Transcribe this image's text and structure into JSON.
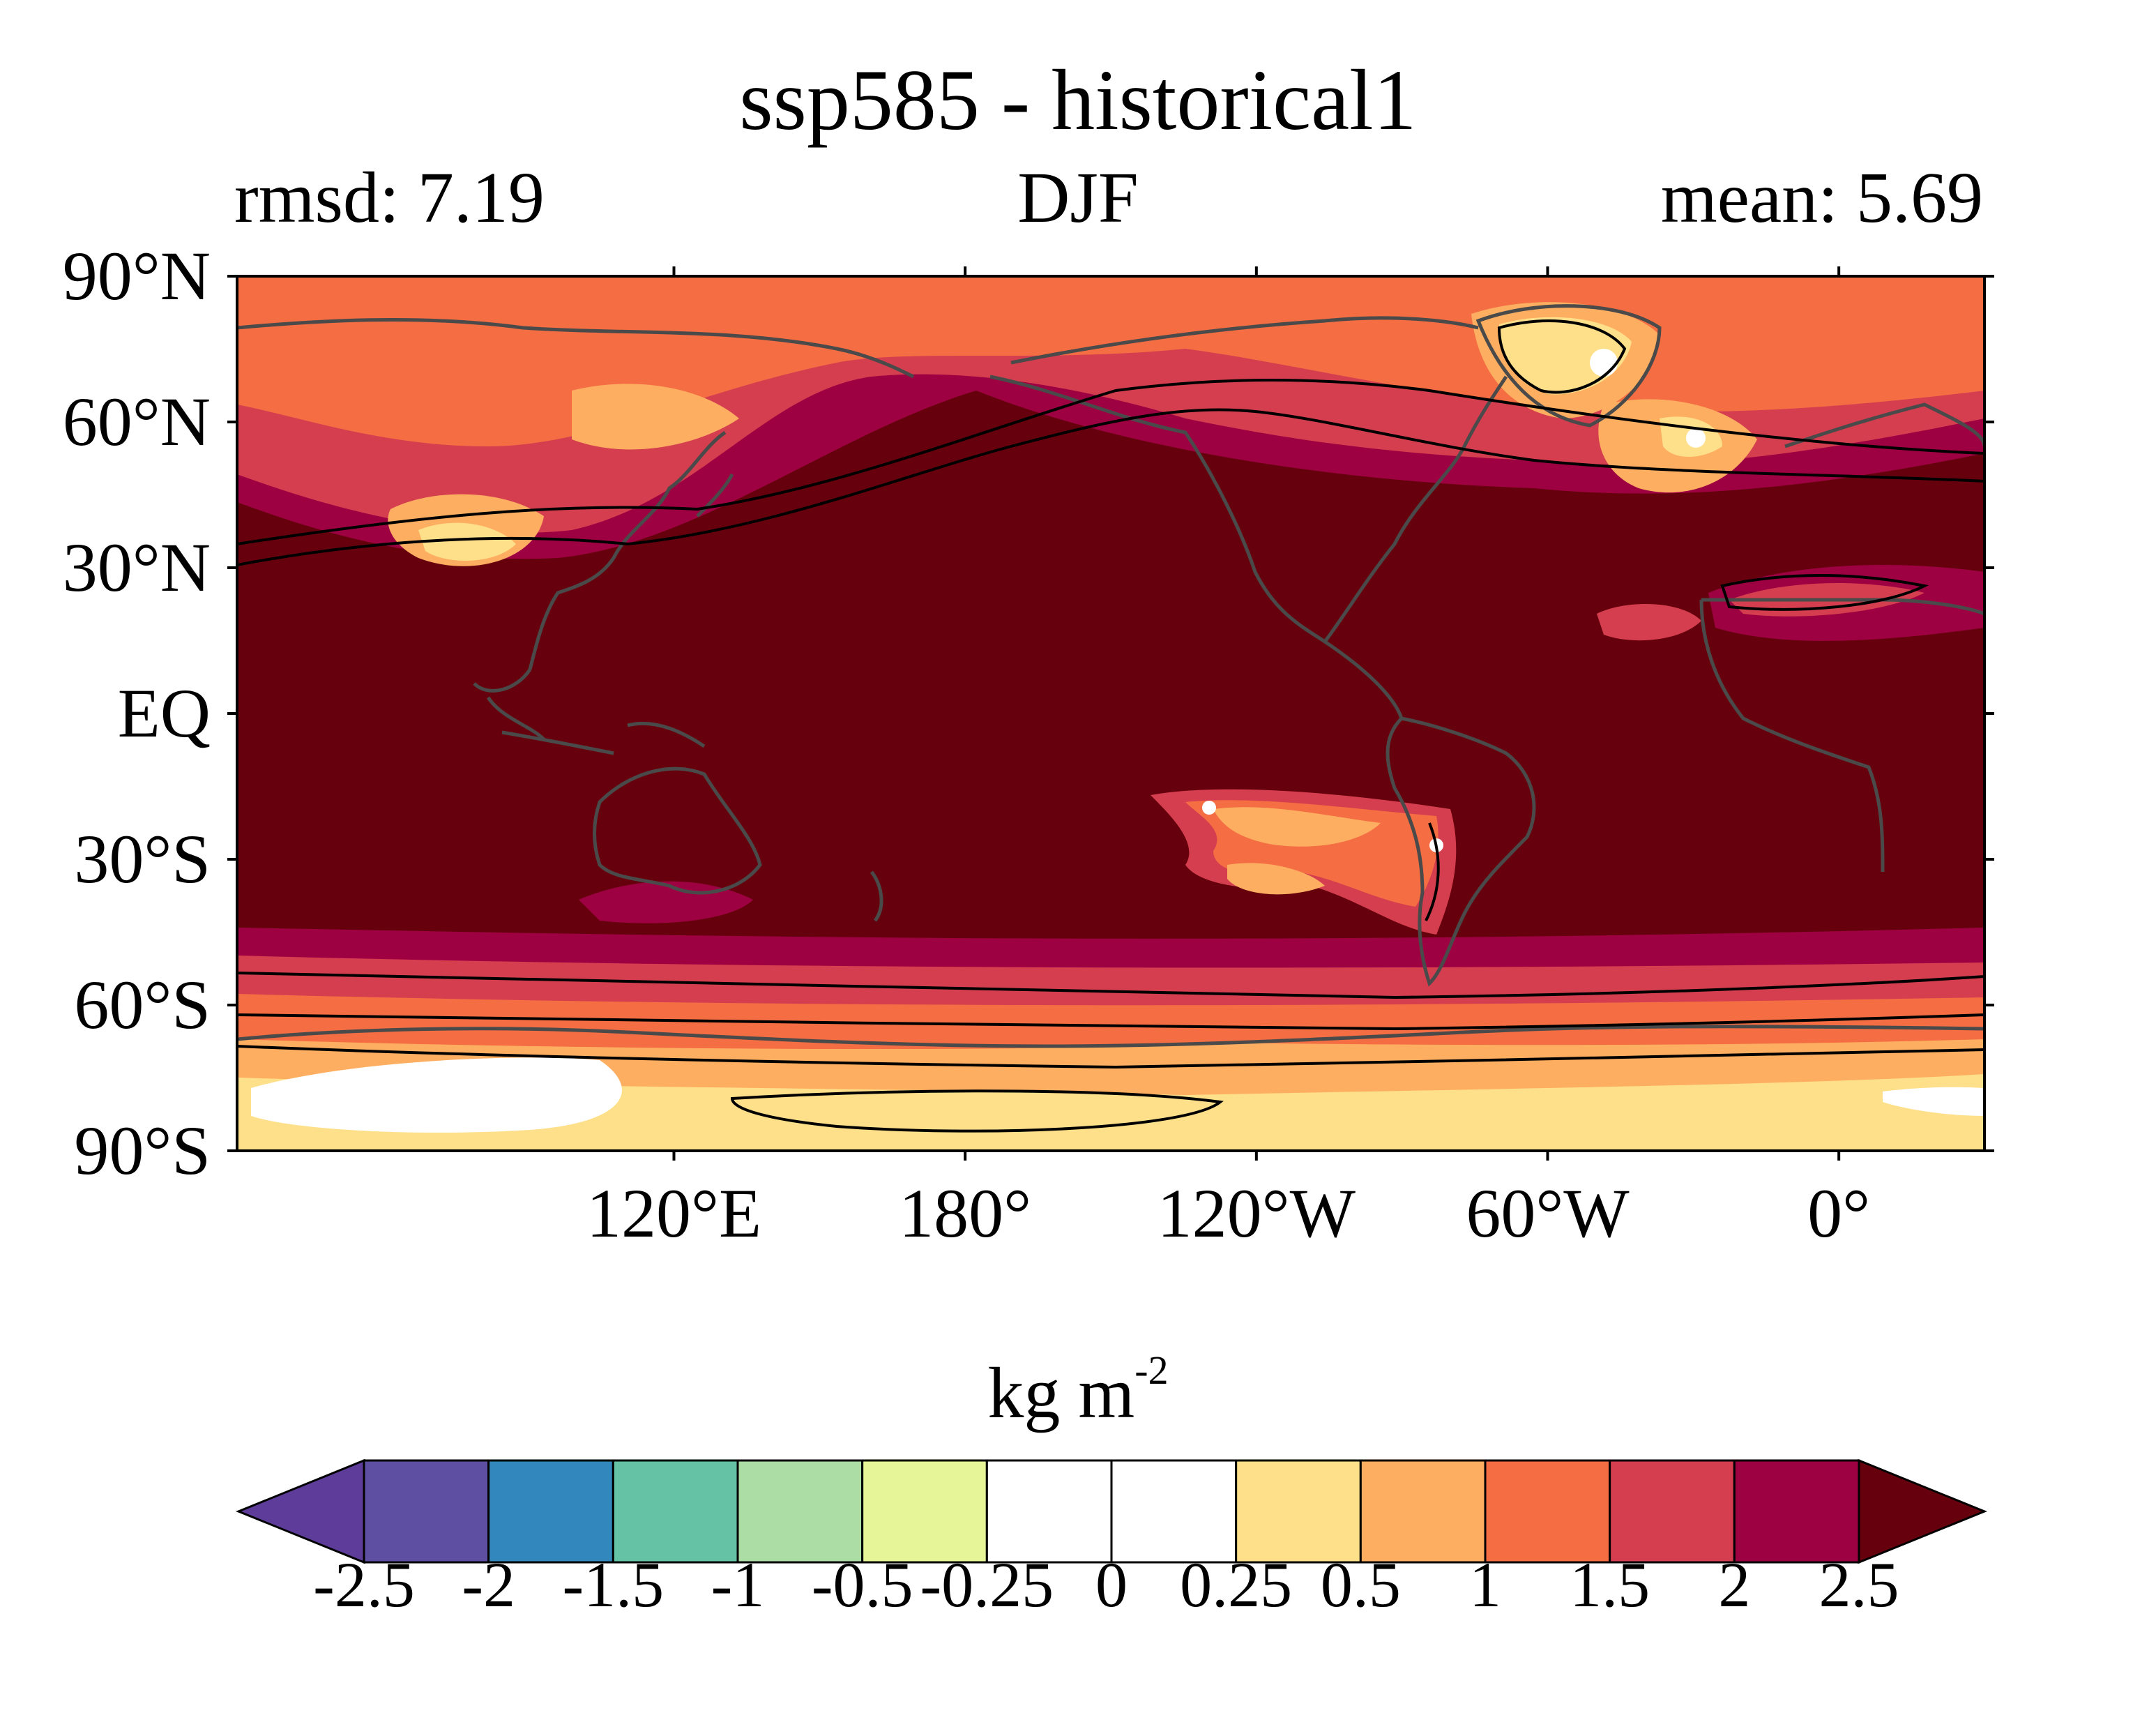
{
  "title": "ssp585 - historical1",
  "subtitle": {
    "left": "rmsd: 7.19",
    "center": "DJF",
    "right": "mean: 5.69"
  },
  "map": {
    "projection": "equirectangular, central longitude 150°W (lon 30°E to 30°E eastward across dateline)",
    "lon_range": [
      30,
      390
    ],
    "lat_range": [
      -90,
      90
    ],
    "lat_labels": [
      "90°N",
      "60°N",
      "30°N",
      "EQ",
      "30°S",
      "60°S",
      "90°S"
    ],
    "lon_labels": [
      "120°E",
      "180°",
      "120°W",
      "60°W",
      "0°"
    ],
    "coastline_color": "#4a4a4a",
    "contour_color": "#000000"
  },
  "colorbar": {
    "label": "kg m",
    "label_exponent": "-2",
    "extend": "both",
    "tick_labels": [
      "-2.5",
      "-2",
      "-1.5",
      "-1",
      "-0.5",
      "-0.25",
      "0",
      "0.25",
      "0.5",
      "1",
      "1.5",
      "2",
      "2.5"
    ],
    "levels": [
      -2.5,
      -2,
      -1.5,
      -1,
      -0.5,
      -0.25,
      0,
      0.25,
      0.5,
      1,
      1.5,
      2,
      2.5
    ],
    "colors": [
      "#5e3c99",
      "#5e4fa2",
      "#3288bd",
      "#66c2a5",
      "#abdda4",
      "#e6f598",
      "#ffffff",
      "#ffffff",
      "#fee08b",
      "#fdae61",
      "#f46d43",
      "#d53e4f",
      "#9e0142",
      "#67000d"
    ]
  }
}
